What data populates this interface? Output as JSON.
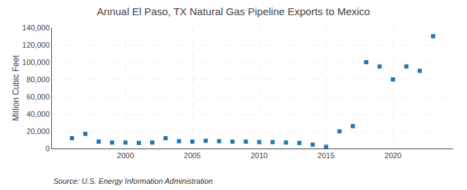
{
  "chart_data": {
    "type": "scatter",
    "title": "Annual El Paso, TX Natural Gas Pipeline Exports to Mexico",
    "ylabel": "Million Cubic Feet",
    "annotations": [
      "Source: U.S. Energy Information Administration"
    ],
    "x": [
      1996,
      1997,
      1998,
      1999,
      2000,
      2001,
      2002,
      2003,
      2004,
      2005,
      2006,
      2007,
      2008,
      2009,
      2010,
      2011,
      2012,
      2013,
      2014,
      2015,
      2016,
      2017,
      2018,
      2019,
      2020,
      2021,
      2022,
      2023
    ],
    "values": [
      12000,
      17000,
      8000,
      7000,
      7000,
      6500,
      7000,
      12000,
      8500,
      8000,
      9000,
      8500,
      8000,
      8000,
      7500,
      7500,
      7000,
      6500,
      4500,
      2000,
      20000,
      26000,
      100000,
      95000,
      80000,
      95000,
      90000,
      130000
    ],
    "marker": "square",
    "xlim": [
      1994.5,
      2024.5
    ],
    "xticks": [
      2000,
      2005,
      2010,
      2015,
      2020
    ],
    "ylim": [
      0,
      140000
    ],
    "yticks": [
      0,
      {
        "value": 20000,
        "label": "20,000"
      },
      {
        "value": 40000,
        "label": "40,000"
      },
      {
        "value": 60000,
        "label": "60,000"
      },
      {
        "value": 80000,
        "label": "80,000"
      },
      {
        "value": 100000,
        "label": "100,000"
      },
      {
        "value": 120000,
        "label": "120,000"
      },
      {
        "value": 140000,
        "label": "140,000"
      }
    ],
    "grid": true
  }
}
